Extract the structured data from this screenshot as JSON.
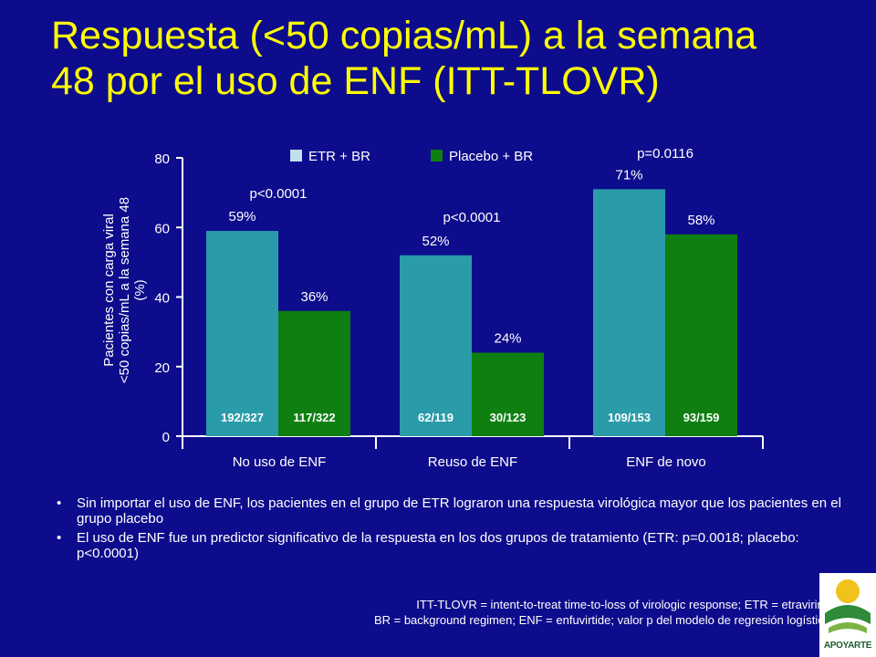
{
  "title": {
    "line1": "Respuesta (<50 copias/mL) a la semana",
    "line2": "48 por el uso de  ENF (ITT-TLOVR)"
  },
  "colors": {
    "background": "#0d0c8c",
    "title": "#ffff00",
    "etr": "#2a9ba8",
    "placebo": "#0e7f10",
    "text": "#ffffff"
  },
  "chart_data": {
    "type": "bar",
    "categories": [
      "No uso de ENF",
      "Reuso de ENF",
      "ENF  de novo"
    ],
    "series": [
      {
        "name": "ETR + BR",
        "values": [
          59,
          52,
          71
        ],
        "labels": [
          "59%",
          "52%",
          "71%"
        ],
        "counts": [
          "192/327",
          "62/119",
          "109/153"
        ]
      },
      {
        "name": "Placebo + BR",
        "values": [
          36,
          24,
          58
        ],
        "labels": [
          "36%",
          "24%",
          "58%"
        ],
        "counts": [
          "117/322",
          "30/123",
          "93/159"
        ]
      }
    ],
    "p_values": [
      "p<0.0001",
      "p<0.0001",
      "p=0.0116"
    ],
    "ylabel_lines": [
      "Pacientes con carga viral",
      "<50 copias/mL a la semana 48",
      "(%)"
    ],
    "yticks": [
      0,
      20,
      40,
      60,
      80
    ],
    "ylim": [
      0,
      80
    ],
    "grid": false,
    "legend_position": "top"
  },
  "bullets": [
    "Sin importar el uso de ENF, los pacientes en el grupo de ETR lograron una respuesta virológica mayor que los pacientes en el grupo placebo",
    "El uso de ENF fue un predictor significativo de la respuesta en los dos grupos de tratamiento (ETR: p=0.0018; placebo: p<0.0001)"
  ],
  "footnote": {
    "line1": "ITT-TLOVR  = intent-to-treat time-to-loss of virologic response; ETR = etravirina",
    "line2": "BR = background regimen; ENF = enfuvirtide; valor  p del modelo de regresión logística"
  },
  "logo": {
    "text": "APOYARTE",
    "icon": "apoyarte-logo-icon"
  }
}
